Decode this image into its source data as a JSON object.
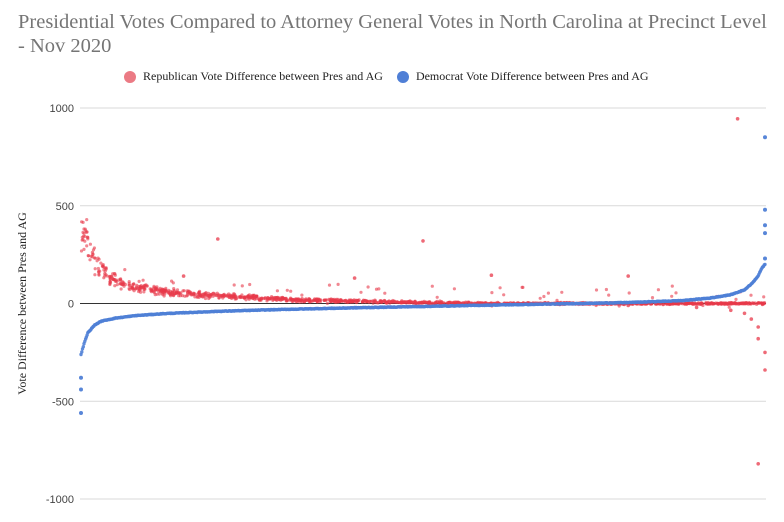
{
  "chart_data": {
    "type": "scatter",
    "title": "Presidential Votes Compared to Attorney General Votes in North Carolina at Precinct Level - Nov 2020",
    "ylabel": "Vote Difference between Pres and AG",
    "xlabel": "",
    "ylim": [
      -1000,
      1000
    ],
    "yticks": [
      1000,
      500,
      0,
      -500,
      -1000
    ],
    "grid": true,
    "legend_position": "top-left",
    "series": [
      {
        "name": "Republican Vote Difference between Pres and AG",
        "color": "#e8384a",
        "x": [
          0,
          0,
          0,
          0,
          0,
          1,
          1,
          2,
          2,
          3,
          4,
          5,
          6,
          8,
          10,
          12,
          15,
          20,
          25,
          30,
          40,
          50,
          60,
          70,
          80,
          90,
          95,
          97,
          98,
          99,
          99,
          100,
          100,
          15,
          40,
          60,
          50,
          20,
          80,
          96,
          99
        ],
        "y": [
          650,
          540,
          500,
          420,
          380,
          360,
          300,
          250,
          200,
          170,
          140,
          120,
          100,
          90,
          75,
          60,
          50,
          40,
          30,
          20,
          12,
          5,
          0,
          -5,
          -10,
          -20,
          -35,
          -50,
          -80,
          -120,
          -180,
          -250,
          -340,
          140,
          130,
          145,
          320,
          330,
          140,
          945,
          -820
        ]
      },
      {
        "name": "Democrat Vote Difference between Pres and AG",
        "color": "#4f7fd6",
        "x": [
          0,
          0.5,
          1,
          2,
          3,
          5,
          8,
          12,
          20,
          30,
          40,
          50,
          60,
          70,
          80,
          88,
          92,
          95,
          97,
          98,
          99,
          99.5,
          100,
          0,
          0,
          0,
          100,
          100,
          100,
          100,
          100
        ],
        "y": [
          -260,
          -200,
          -150,
          -110,
          -90,
          -75,
          -62,
          -52,
          -40,
          -30,
          -22,
          -15,
          -8,
          -2,
          5,
          15,
          28,
          45,
          70,
          100,
          140,
          180,
          200,
          -380,
          -440,
          -560,
          850,
          480,
          400,
          360,
          230
        ]
      }
    ]
  }
}
